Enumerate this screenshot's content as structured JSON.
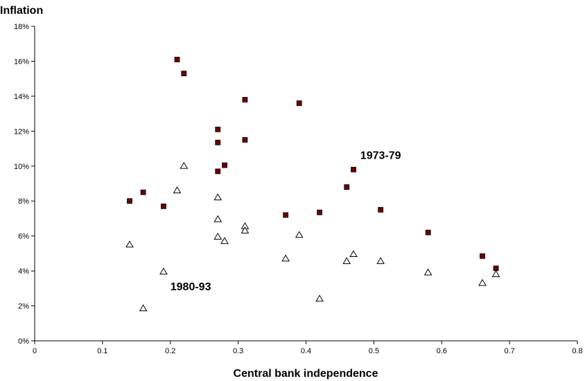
{
  "chart_data": {
    "type": "scatter",
    "ylabel": "Inflation",
    "xlabel": "Central bank independence",
    "xlim": [
      0,
      0.8
    ],
    "ylim": [
      0,
      18
    ],
    "x_ticks": [
      {
        "value": 0,
        "label": "0"
      },
      {
        "value": 0.1,
        "label": "0.1"
      },
      {
        "value": 0.2,
        "label": "0.2"
      },
      {
        "value": 0.3,
        "label": "0.3"
      },
      {
        "value": 0.4,
        "label": "0.4"
      },
      {
        "value": 0.5,
        "label": "0.5"
      },
      {
        "value": 0.6,
        "label": "0.6"
      },
      {
        "value": 0.7,
        "label": "0.7"
      },
      {
        "value": 0.8,
        "label": "0.8"
      }
    ],
    "y_ticks": [
      {
        "value": 0,
        "label": "0%"
      },
      {
        "value": 2,
        "label": "2%"
      },
      {
        "value": 4,
        "label": "4%"
      },
      {
        "value": 6,
        "label": "6%"
      },
      {
        "value": 8,
        "label": "8%"
      },
      {
        "value": 10,
        "label": "10%"
      },
      {
        "value": 12,
        "label": "12%"
      },
      {
        "value": 14,
        "label": "14%"
      },
      {
        "value": 16,
        "label": "16%"
      },
      {
        "value": 18,
        "label": "18%"
      }
    ],
    "grid": false,
    "legend": "none",
    "series": [
      {
        "marker": "square",
        "color": "#6b0000",
        "points": [
          {
            "x": 0.14,
            "y": 8.0
          },
          {
            "x": 0.16,
            "y": 8.5
          },
          {
            "x": 0.19,
            "y": 7.7
          },
          {
            "x": 0.21,
            "y": 16.1
          },
          {
            "x": 0.22,
            "y": 15.3
          },
          {
            "x": 0.27,
            "y": 12.1
          },
          {
            "x": 0.27,
            "y": 11.35
          },
          {
            "x": 0.27,
            "y": 9.7
          },
          {
            "x": 0.28,
            "y": 10.05
          },
          {
            "x": 0.31,
            "y": 13.8
          },
          {
            "x": 0.31,
            "y": 11.5
          },
          {
            "x": 0.37,
            "y": 7.2
          },
          {
            "x": 0.39,
            "y": 13.6
          },
          {
            "x": 0.42,
            "y": 7.35
          },
          {
            "x": 0.46,
            "y": 8.8
          },
          {
            "x": 0.47,
            "y": 9.8
          },
          {
            "x": 0.51,
            "y": 7.5
          },
          {
            "x": 0.58,
            "y": 6.2
          },
          {
            "x": 0.66,
            "y": 4.85
          },
          {
            "x": 0.68,
            "y": 4.15
          }
        ]
      },
      {
        "marker": "triangle",
        "color": "#000000",
        "points": [
          {
            "x": 0.14,
            "y": 5.5
          },
          {
            "x": 0.16,
            "y": 1.85
          },
          {
            "x": 0.19,
            "y": 3.95
          },
          {
            "x": 0.21,
            "y": 8.6
          },
          {
            "x": 0.22,
            "y": 10.0
          },
          {
            "x": 0.27,
            "y": 8.2
          },
          {
            "x": 0.27,
            "y": 6.95
          },
          {
            "x": 0.27,
            "y": 5.95
          },
          {
            "x": 0.28,
            "y": 5.7
          },
          {
            "x": 0.31,
            "y": 6.55
          },
          {
            "x": 0.31,
            "y": 6.3
          },
          {
            "x": 0.37,
            "y": 4.7
          },
          {
            "x": 0.39,
            "y": 6.05
          },
          {
            "x": 0.42,
            "y": 2.4
          },
          {
            "x": 0.46,
            "y": 4.55
          },
          {
            "x": 0.47,
            "y": 4.95
          },
          {
            "x": 0.51,
            "y": 4.55
          },
          {
            "x": 0.58,
            "y": 3.9
          },
          {
            "x": 0.66,
            "y": 3.3
          },
          {
            "x": 0.68,
            "y": 3.8
          }
        ]
      }
    ],
    "annotations": [
      {
        "text": "1973-79",
        "x": 0.48,
        "y": 10.4
      },
      {
        "text": "1980-93",
        "x": 0.2,
        "y": 2.9
      }
    ]
  }
}
